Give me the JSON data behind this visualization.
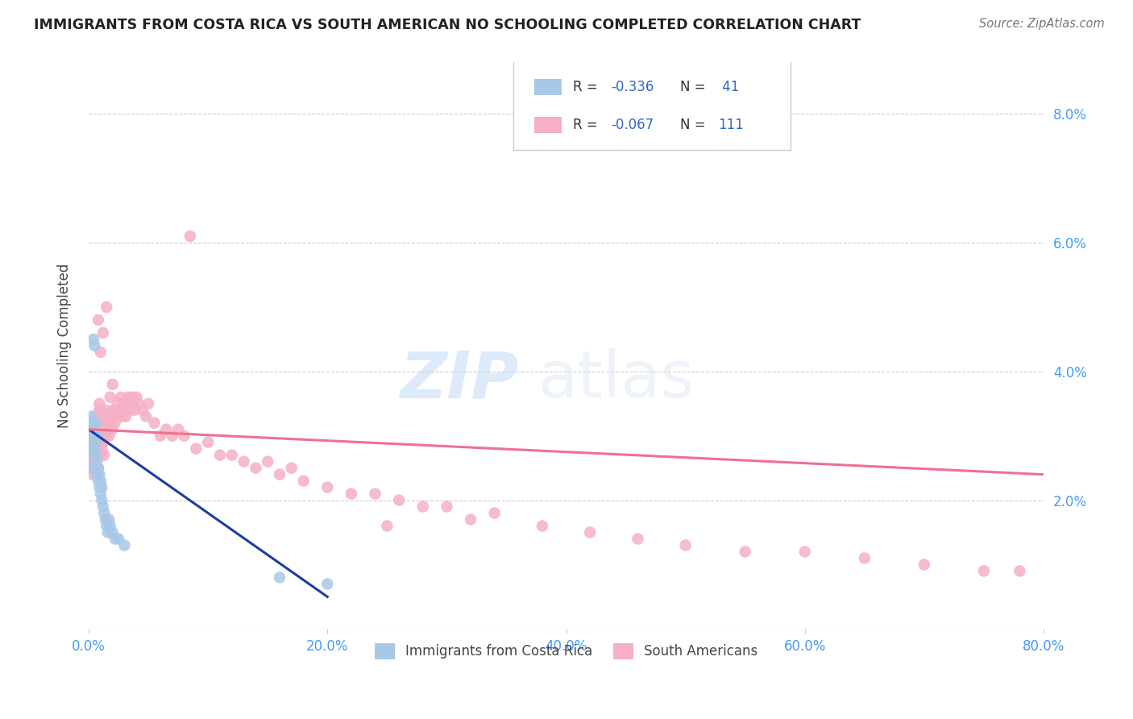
{
  "title": "IMMIGRANTS FROM COSTA RICA VS SOUTH AMERICAN NO SCHOOLING COMPLETED CORRELATION CHART",
  "source": "Source: ZipAtlas.com",
  "ylabel": "No Schooling Completed",
  "xlim": [
    0.0,
    0.8
  ],
  "ylim": [
    0.0,
    0.088
  ],
  "xticks": [
    0.0,
    0.2,
    0.4,
    0.6,
    0.8
  ],
  "yticks": [
    0.0,
    0.02,
    0.04,
    0.06,
    0.08
  ],
  "xticklabels": [
    "0.0%",
    "20.0%",
    "40.0%",
    "60.0%",
    "80.0%"
  ],
  "yticklabels": [
    "",
    "2.0%",
    "4.0%",
    "6.0%",
    "8.0%"
  ],
  "legend_r1": "R = ",
  "legend_v1": "-0.336",
  "legend_n1_label": "N = ",
  "legend_n1_val": " 41",
  "legend_r2": "R = ",
  "legend_v2": "-0.067",
  "legend_n2_label": "N = ",
  "legend_n2_val": "111",
  "color_cr": "#a8c8e8",
  "color_sa": "#f5b0c5",
  "line_color_cr": "#1a3fa0",
  "line_color_sa": "#f07090",
  "watermark_zip": "ZIP",
  "watermark_atlas": "atlas",
  "costa_rica_x": [
    0.001,
    0.001,
    0.002,
    0.002,
    0.002,
    0.003,
    0.003,
    0.003,
    0.004,
    0.004,
    0.004,
    0.005,
    0.005,
    0.005,
    0.006,
    0.006,
    0.006,
    0.007,
    0.007,
    0.007,
    0.008,
    0.008,
    0.009,
    0.009,
    0.01,
    0.01,
    0.011,
    0.011,
    0.012,
    0.013,
    0.014,
    0.015,
    0.016,
    0.017,
    0.018,
    0.02,
    0.022,
    0.025,
    0.03,
    0.16,
    0.2
  ],
  "costa_rica_y": [
    0.03,
    0.028,
    0.033,
    0.03,
    0.029,
    0.032,
    0.028,
    0.025,
    0.03,
    0.027,
    0.045,
    0.031,
    0.028,
    0.044,
    0.029,
    0.032,
    0.027,
    0.03,
    0.026,
    0.024,
    0.025,
    0.023,
    0.024,
    0.022,
    0.023,
    0.021,
    0.022,
    0.02,
    0.019,
    0.018,
    0.017,
    0.016,
    0.015,
    0.017,
    0.016,
    0.015,
    0.014,
    0.014,
    0.013,
    0.008,
    0.007
  ],
  "south_america_x": [
    0.001,
    0.001,
    0.002,
    0.002,
    0.002,
    0.003,
    0.003,
    0.003,
    0.003,
    0.004,
    0.004,
    0.004,
    0.005,
    0.005,
    0.005,
    0.006,
    0.006,
    0.006,
    0.007,
    0.007,
    0.007,
    0.008,
    0.008,
    0.008,
    0.009,
    0.009,
    0.009,
    0.01,
    0.01,
    0.01,
    0.011,
    0.011,
    0.012,
    0.012,
    0.013,
    0.013,
    0.014,
    0.014,
    0.015,
    0.015,
    0.016,
    0.017,
    0.018,
    0.018,
    0.019,
    0.02,
    0.02,
    0.021,
    0.022,
    0.023,
    0.024,
    0.025,
    0.026,
    0.027,
    0.028,
    0.029,
    0.03,
    0.031,
    0.032,
    0.033,
    0.034,
    0.035,
    0.036,
    0.037,
    0.038,
    0.04,
    0.042,
    0.045,
    0.048,
    0.05,
    0.055,
    0.06,
    0.065,
    0.07,
    0.075,
    0.08,
    0.09,
    0.1,
    0.11,
    0.12,
    0.13,
    0.14,
    0.15,
    0.16,
    0.17,
    0.18,
    0.2,
    0.22,
    0.24,
    0.26,
    0.28,
    0.3,
    0.34,
    0.38,
    0.42,
    0.46,
    0.5,
    0.55,
    0.6,
    0.65,
    0.7,
    0.75,
    0.78,
    0.25,
    0.32,
    0.008,
    0.01,
    0.012,
    0.015,
    0.02,
    0.085
  ],
  "south_america_y": [
    0.028,
    0.025,
    0.03,
    0.027,
    0.032,
    0.026,
    0.029,
    0.024,
    0.031,
    0.025,
    0.028,
    0.032,
    0.026,
    0.029,
    0.033,
    0.025,
    0.028,
    0.031,
    0.024,
    0.027,
    0.03,
    0.025,
    0.028,
    0.032,
    0.035,
    0.029,
    0.034,
    0.027,
    0.031,
    0.034,
    0.028,
    0.032,
    0.029,
    0.033,
    0.027,
    0.031,
    0.03,
    0.034,
    0.03,
    0.033,
    0.031,
    0.03,
    0.032,
    0.036,
    0.033,
    0.031,
    0.034,
    0.033,
    0.032,
    0.034,
    0.035,
    0.033,
    0.034,
    0.036,
    0.033,
    0.035,
    0.034,
    0.033,
    0.035,
    0.036,
    0.034,
    0.035,
    0.036,
    0.035,
    0.034,
    0.036,
    0.035,
    0.034,
    0.033,
    0.035,
    0.032,
    0.03,
    0.031,
    0.03,
    0.031,
    0.03,
    0.028,
    0.029,
    0.027,
    0.027,
    0.026,
    0.025,
    0.026,
    0.024,
    0.025,
    0.023,
    0.022,
    0.021,
    0.021,
    0.02,
    0.019,
    0.019,
    0.018,
    0.016,
    0.015,
    0.014,
    0.013,
    0.012,
    0.012,
    0.011,
    0.01,
    0.009,
    0.009,
    0.016,
    0.017,
    0.048,
    0.043,
    0.046,
    0.05,
    0.038,
    0.061
  ]
}
